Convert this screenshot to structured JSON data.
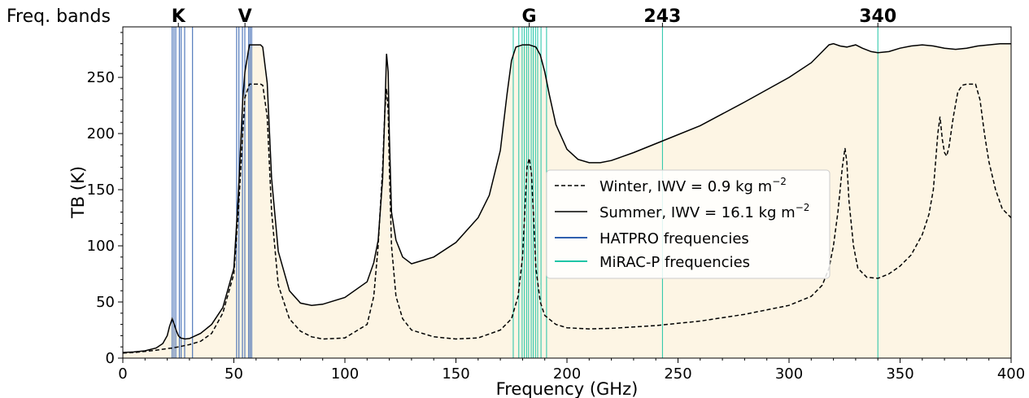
{
  "chart_data": {
    "type": "line",
    "title": "",
    "xlabel": "Frequency (GHz)",
    "ylabel": "TB (K)",
    "xlim": [
      0,
      400
    ],
    "ylim": [
      0,
      295
    ],
    "xticks": [
      0,
      50,
      100,
      150,
      200,
      250,
      300,
      350,
      400
    ],
    "yticks": [
      0,
      50,
      100,
      150,
      200,
      250
    ],
    "grid": false,
    "legend_position": "center-right",
    "band_title": "Freq. bands",
    "bands": [
      {
        "label": "K",
        "x": 25
      },
      {
        "label": "V",
        "x": 55
      },
      {
        "label": "G",
        "x": 183
      },
      {
        "label": "243",
        "x": 243
      },
      {
        "label": "340",
        "x": 340
      }
    ],
    "legend": {
      "winter": "Winter, IWV = 0.9",
      "summer": "Summer, IWV = 16.1",
      "unit_base": "kg m",
      "unit_exp": "−2",
      "hatpro": "HATPRO frequencies",
      "mirac": "MiRAC-P frequencies"
    },
    "colors": {
      "fill": "#fdf5e4",
      "hatpro": "#2f5fae",
      "mirac": "#1fc4a6",
      "line": "#000000"
    },
    "series": [
      {
        "name": "Summer, IWV = 16.1 kg m−2",
        "style": "solid",
        "x": [
          0,
          5,
          10,
          15,
          18,
          20,
          21,
          22.2,
          23,
          24,
          25,
          26,
          28,
          30,
          35,
          40,
          45,
          50,
          52,
          54,
          55,
          57,
          60,
          62,
          63,
          65,
          67,
          70,
          75,
          80,
          85,
          90,
          100,
          110,
          113,
          115,
          117,
          118,
          118.75,
          119.5,
          120,
          121,
          123,
          126,
          130,
          140,
          150,
          160,
          165,
          170,
          173,
          175,
          177,
          180,
          183,
          186,
          188,
          190,
          192,
          195,
          200,
          205,
          210,
          215,
          220,
          230,
          240,
          260,
          280,
          300,
          310,
          315,
          318,
          320,
          323,
          326,
          330,
          333,
          337,
          340,
          345,
          350,
          355,
          360,
          365,
          370,
          375,
          380,
          385,
          390,
          395,
          400
        ],
        "y": [
          5,
          5.5,
          6.5,
          9,
          13,
          20,
          28,
          35,
          31,
          25,
          20,
          18,
          17,
          17.5,
          22,
          30,
          45,
          80,
          145,
          230,
          255,
          279,
          279,
          279,
          277,
          245,
          160,
          95,
          60,
          49,
          47,
          48,
          54,
          68,
          85,
          105,
          160,
          220,
          271,
          255,
          200,
          130,
          105,
          90,
          84,
          90,
          103,
          125,
          145,
          185,
          235,
          265,
          277,
          279,
          279,
          277,
          270,
          255,
          235,
          208,
          186,
          177,
          174,
          174,
          176,
          183,
          191,
          207,
          228,
          250,
          263,
          273,
          279,
          280,
          278,
          277,
          279,
          276,
          273,
          272,
          273,
          276,
          278,
          279,
          278,
          276,
          275,
          276,
          278,
          279,
          280,
          280
        ]
      },
      {
        "name": "Winter, IWV = 0.9 kg m−2",
        "style": "dashed",
        "x": [
          0,
          5,
          10,
          15,
          20,
          22.2,
          25,
          30,
          35,
          40,
          45,
          50,
          52,
          54,
          55,
          57,
          60,
          62,
          63,
          65,
          67,
          70,
          75,
          80,
          85,
          90,
          100,
          110,
          113,
          115,
          117,
          118,
          118.75,
          119.5,
          120,
          121,
          123,
          126,
          130,
          140,
          150,
          160,
          170,
          175,
          178,
          180,
          181,
          182,
          183,
          184,
          185,
          186,
          188,
          190,
          195,
          200,
          210,
          220,
          240,
          260,
          280,
          300,
          310,
          315,
          318,
          320,
          322,
          324,
          325.2,
          326,
          327,
          329,
          331,
          335,
          340,
          345,
          350,
          355,
          360,
          363,
          365,
          366,
          367,
          368,
          369,
          370,
          371,
          372,
          374,
          376,
          378,
          380,
          384,
          386,
          388,
          390,
          393,
          396,
          400
        ],
        "y": [
          4.5,
          5,
          6,
          7,
          8.5,
          9,
          10,
          12,
          15,
          22,
          40,
          75,
          130,
          200,
          232,
          244,
          244,
          244,
          243,
          215,
          130,
          65,
          35,
          24,
          19,
          17,
          18,
          30,
          55,
          100,
          170,
          220,
          240,
          220,
          170,
          100,
          55,
          35,
          25,
          19,
          17,
          18,
          25,
          35,
          55,
          90,
          130,
          170,
          178,
          165,
          125,
          80,
          50,
          38,
          30,
          27,
          26,
          26.5,
          29,
          33,
          39,
          47,
          55,
          65,
          80,
          100,
          130,
          170,
          187,
          175,
          140,
          100,
          80,
          72,
          71,
          75,
          82,
          92,
          110,
          128,
          150,
          175,
          200,
          215,
          195,
          183,
          180,
          188,
          215,
          237,
          243,
          244,
          244,
          230,
          200,
          175,
          150,
          133,
          125
        ]
      }
    ],
    "hatpro_frequencies": [
      22.24,
      23.04,
      23.84,
      25.44,
      26.24,
      27.84,
      31.4,
      51.26,
      52.28,
      53.86,
      54.94,
      56.66,
      57.3,
      58.0
    ],
    "mirac_frequencies": [
      175.81,
      178.31,
      179.81,
      180.81,
      181.81,
      182.71,
      183.91,
      184.81,
      185.81,
      186.81,
      188.31,
      190.81,
      243.0,
      340.0
    ]
  }
}
